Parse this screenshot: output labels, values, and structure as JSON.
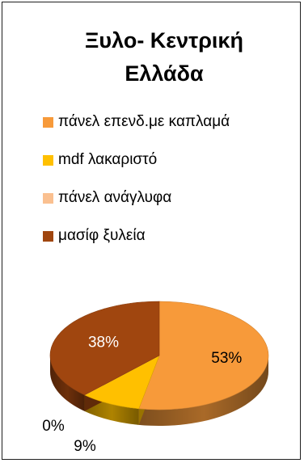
{
  "chart_data": {
    "type": "pie",
    "title_line1": "Ξυλο- Κεντρική",
    "title_line2": "Ελλάδα",
    "legend_position": "top",
    "slices": [
      {
        "label": "πάνελ επενδ.με καπλαμά",
        "value": 53,
        "display": "53%",
        "color": "#f79a3a"
      },
      {
        "label": "mdf λακαριστό",
        "value": 9,
        "display": "9%",
        "color": "#ffc000"
      },
      {
        "label": "πάνελ ανάγλυφα",
        "value": 0,
        "display": "0%",
        "color": "#fac090"
      },
      {
        "label": "μασίφ ξυλεία",
        "value": 38,
        "display": "38%",
        "color": "#a0460f"
      }
    ]
  }
}
